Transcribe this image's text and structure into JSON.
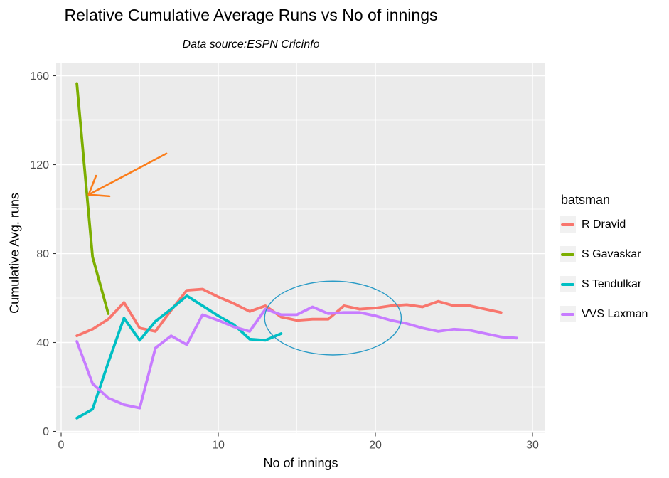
{
  "header": {
    "title": "Relative Cumulative Average Runs vs No of innings",
    "subtitle": "Data source:ESPN Cricinfo"
  },
  "chart_data": {
    "type": "line",
    "title": "Relative Cumulative Average Runs vs No of innings",
    "subtitle": "Data source:ESPN Cricinfo",
    "xlabel": "No of innings",
    "ylabel": "Cumulative Avg. runs",
    "xlim": [
      0,
      30
    ],
    "ylim": [
      0,
      160
    ],
    "x_ticks": [
      0,
      10,
      20,
      30
    ],
    "x_minor_ticks": [
      5,
      15,
      25
    ],
    "y_ticks": [
      0,
      40,
      80,
      120,
      160
    ],
    "y_minor_ticks": [
      20,
      60,
      100,
      140
    ],
    "grid": true,
    "legend_title": "batsman",
    "legend_position": "right",
    "series": [
      {
        "name": "R Dravid",
        "color": "#F8766D",
        "x": [
          1,
          2,
          3,
          4,
          5,
          6,
          7,
          8,
          9,
          10,
          11,
          12,
          13,
          14,
          15,
          16,
          17,
          18,
          19,
          20,
          21,
          22,
          23,
          24,
          25,
          26,
          27,
          28
        ],
        "y": [
          43,
          46,
          50.5,
          58,
          46.5,
          45,
          54.5,
          63.5,
          64,
          60.5,
          57.5,
          54,
          56.5,
          51.5,
          50,
          50.5,
          50.5,
          56.5,
          55,
          55.5,
          56.5,
          57,
          56,
          58.5,
          56.5,
          56.5,
          55,
          53.5
        ]
      },
      {
        "name": "S Gavaskar",
        "color": "#7CAE00",
        "x": [
          1,
          2,
          3
        ],
        "y": [
          156.5,
          78.5,
          53
        ]
      },
      {
        "name": "S Tendulkar",
        "color": "#00BFC4",
        "x": [
          1,
          2,
          3,
          4,
          5,
          6,
          7,
          8,
          9,
          10,
          11,
          12,
          13,
          14
        ],
        "y": [
          6,
          10,
          31,
          51,
          41,
          49.5,
          55,
          61,
          56.5,
          52,
          48,
          41.5,
          41,
          44
        ]
      },
      {
        "name": "VVS Laxman",
        "color": "#C77CFF",
        "x": [
          1,
          2,
          3,
          4,
          5,
          6,
          7,
          8,
          9,
          10,
          11,
          12,
          13,
          14,
          15,
          16,
          17,
          18,
          19,
          20,
          21,
          22,
          23,
          24,
          25,
          26,
          27,
          28,
          29
        ],
        "y": [
          40.5,
          21.5,
          15,
          12,
          10.5,
          37.5,
          43,
          39,
          52.5,
          50,
          47,
          45,
          55,
          52.5,
          52.5,
          56,
          53,
          53.5,
          53.5,
          52,
          50,
          48.5,
          46.5,
          45,
          46,
          45.5,
          44,
          42.5,
          42
        ]
      }
    ],
    "annotations": {
      "arrow": {
        "shape": "arrow",
        "color": "#FB7D1A",
        "tail": [
          6.7,
          125
        ],
        "tip": [
          1.75,
          106.5
        ],
        "barb1": [
          2.22,
          115
        ],
        "barb2": [
          3.08,
          105.8
        ],
        "points_at": "S Gavaskar line"
      },
      "ellipse": {
        "shape": "ellipse",
        "color": "#2A9BC6",
        "center_x": 17.3,
        "center_y": 51,
        "radius_x": 4.35,
        "radius_y": 16.6
      }
    }
  },
  "colors": {
    "background": "#FFFFFF",
    "panel_bg": "#EBEBEB",
    "grid": "#FFFFFF",
    "tick_label": "#4D4D4D",
    "tick_mark": "#333333",
    "legend_key_bg": "#F1F1F1"
  }
}
